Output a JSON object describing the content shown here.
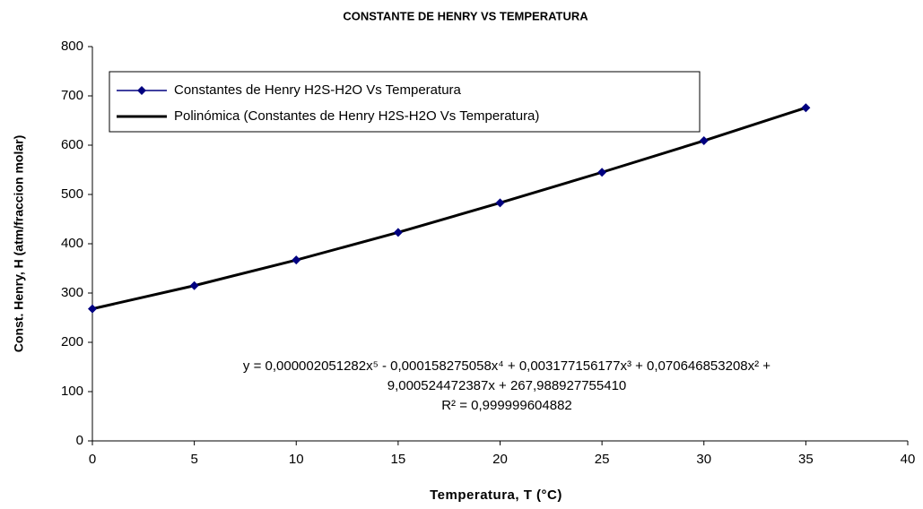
{
  "chart_data": {
    "type": "line",
    "title": "CONSTANTE DE HENRY VS TEMPERATURA",
    "x_label": "Temperatura, T (°C)",
    "y_label": "Const. Henry, H (atm/fraccion molar)",
    "x": [
      0,
      5,
      10,
      15,
      20,
      25,
      30,
      35
    ],
    "series": [
      {
        "name": "Constantes de Henry H2S-H2O Vs Temperatura",
        "color": "#000080",
        "marker": "diamond",
        "values": [
          268,
          315,
          367,
          423,
          483,
          545,
          609,
          676
        ]
      },
      {
        "name": "Polinómica (Constantes de Henry H2S-H2O Vs Temperatura)",
        "color": "#000000",
        "values": [
          268,
          315,
          367,
          423,
          483,
          545,
          609,
          676
        ]
      }
    ],
    "annotations": [
      "y = 0,000002051282x⁵ - 0,000158275058x⁴ + 0,003177156177x³ + 0,070646853208x² +",
      "9,000524472387x + 267,988927755410",
      "R² = 0,999999604882"
    ],
    "xlim": [
      0,
      40
    ],
    "xticks": [
      0,
      5,
      10,
      15,
      20,
      25,
      30,
      35,
      40
    ],
    "ylim": [
      0,
      800
    ],
    "yticks": [
      0,
      100,
      200,
      300,
      400,
      500,
      600,
      700,
      800
    ],
    "grid": false,
    "legend": "top-left"
  }
}
